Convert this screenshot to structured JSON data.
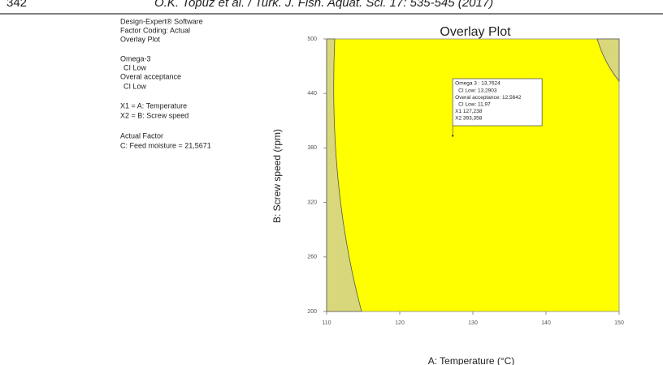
{
  "header": {
    "page": "342",
    "citation": "Ö.K. Topuz et al. / Turk. J. Fish. Aquat. Sci. 17: 535-545 (2017)"
  },
  "legend_text": [
    "Design-Expert® Software",
    "Factor Coding: Actual",
    "Overlay Plot",
    "Omega-3",
    "CI Low",
    "Overal acceptance",
    "CI Low",
    "X1 = A: Temperature",
    "X2 = B: Screw speed",
    "Actual Factor",
    "C: Feed moisture = 21,5671"
  ],
  "chart_data": {
    "type": "overlay",
    "title": "Overlay Plot",
    "x_label": "A: Temperature (°C)",
    "y_label": "B: Screw speed (rpm)",
    "xlim": [
      110,
      150
    ],
    "ylim": [
      200,
      500
    ],
    "xticks": [
      110,
      120,
      130,
      140,
      150
    ],
    "yticks": [
      200,
      260,
      320,
      380,
      440,
      500
    ],
    "point": {
      "x": 127.238,
      "y": 393.358
    },
    "flag": [
      "Omega 3 :  13,7624",
      "CI Low:  13,2903",
      "Overal acceptance:  12,5642",
      "CI Low:  11,97",
      "X1  127,238",
      "X2  393,358"
    ]
  }
}
